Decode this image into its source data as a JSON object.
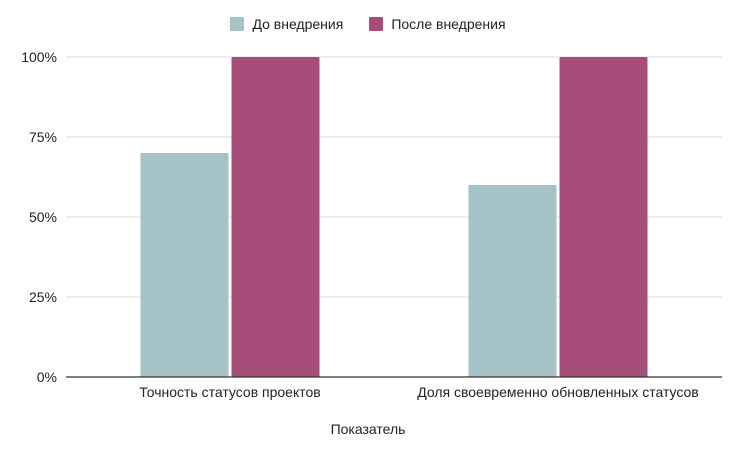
{
  "chart_data": {
    "type": "bar",
    "title": "",
    "xlabel": "Показатель",
    "ylabel": "",
    "categories": [
      "Точность статусов проектов",
      "Доля своевременно обновленных статусов"
    ],
    "series": [
      {
        "name": "До внедрения",
        "values": [
          70,
          60
        ],
        "color": "#a5c3c7"
      },
      {
        "name": "После внедрения",
        "values": [
          100,
          100
        ],
        "color": "#a64d79"
      }
    ],
    "ylim": [
      0,
      100
    ],
    "yticks": [
      "0%",
      "25%",
      "50%",
      "75%",
      "100%"
    ],
    "grid": true,
    "legend": "top-center"
  }
}
